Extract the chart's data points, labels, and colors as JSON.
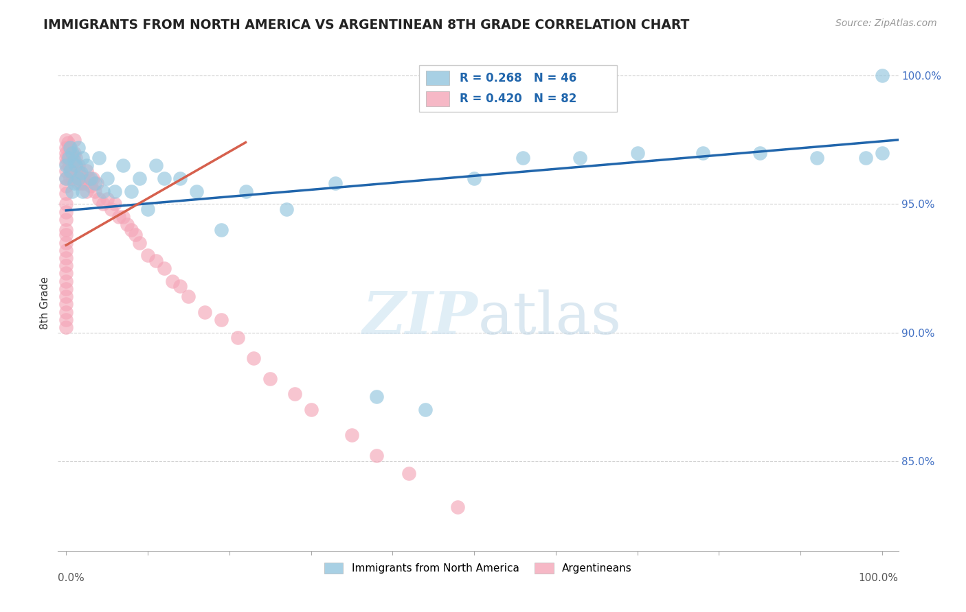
{
  "title": "IMMIGRANTS FROM NORTH AMERICA VS ARGENTINEAN 8TH GRADE CORRELATION CHART",
  "source": "Source: ZipAtlas.com",
  "ylabel": "8th Grade",
  "xlim": [
    -0.01,
    1.02
  ],
  "ylim": [
    0.815,
    1.008
  ],
  "yticks": [
    0.85,
    0.9,
    0.95,
    1.0
  ],
  "ytick_labels": [
    "85.0%",
    "90.0%",
    "95.0%",
    "100.0%"
  ],
  "blue_color": "#92c5de",
  "pink_color": "#f4a6b8",
  "blue_line_color": "#2166ac",
  "pink_line_color": "#d6604d",
  "blue_line_x": [
    0.0,
    1.02
  ],
  "blue_line_y": [
    0.9475,
    0.975
  ],
  "pink_line_x": [
    0.0,
    0.22
  ],
  "pink_line_y": [
    0.934,
    0.974
  ],
  "blue_scatter_x": [
    0.0,
    0.0,
    0.003,
    0.005,
    0.005,
    0.007,
    0.007,
    0.01,
    0.01,
    0.012,
    0.015,
    0.015,
    0.018,
    0.02,
    0.02,
    0.025,
    0.03,
    0.035,
    0.04,
    0.045,
    0.05,
    0.06,
    0.07,
    0.08,
    0.09,
    0.1,
    0.11,
    0.12,
    0.14,
    0.16,
    0.19,
    0.22,
    0.27,
    0.33,
    0.38,
    0.44,
    0.5,
    0.56,
    0.63,
    0.7,
    0.78,
    0.85,
    0.92,
    0.98,
    1.0,
    1.0
  ],
  "blue_scatter_y": [
    0.965,
    0.96,
    0.968,
    0.972,
    0.963,
    0.97,
    0.955,
    0.967,
    0.958,
    0.965,
    0.96,
    0.972,
    0.962,
    0.968,
    0.955,
    0.965,
    0.96,
    0.958,
    0.968,
    0.955,
    0.96,
    0.955,
    0.965,
    0.955,
    0.96,
    0.948,
    0.965,
    0.96,
    0.96,
    0.955,
    0.94,
    0.955,
    0.948,
    0.958,
    0.875,
    0.87,
    0.96,
    0.968,
    0.968,
    0.97,
    0.97,
    0.97,
    0.968,
    0.968,
    0.97,
    1.0
  ],
  "pink_scatter_x": [
    0.0,
    0.0,
    0.0,
    0.0,
    0.0,
    0.0,
    0.0,
    0.0,
    0.0,
    0.0,
    0.0,
    0.0,
    0.0,
    0.0,
    0.0,
    0.0,
    0.0,
    0.0,
    0.0,
    0.0,
    0.0,
    0.0,
    0.0,
    0.0,
    0.0,
    0.0,
    0.002,
    0.002,
    0.003,
    0.004,
    0.005,
    0.005,
    0.006,
    0.007,
    0.008,
    0.009,
    0.01,
    0.01,
    0.01,
    0.012,
    0.013,
    0.015,
    0.015,
    0.016,
    0.018,
    0.02,
    0.022,
    0.025,
    0.025,
    0.028,
    0.03,
    0.033,
    0.035,
    0.038,
    0.04,
    0.045,
    0.05,
    0.055,
    0.06,
    0.065,
    0.07,
    0.075,
    0.08,
    0.085,
    0.09,
    0.1,
    0.11,
    0.12,
    0.13,
    0.14,
    0.15,
    0.17,
    0.19,
    0.21,
    0.23,
    0.25,
    0.28,
    0.3,
    0.35,
    0.38,
    0.42,
    0.48
  ],
  "pink_scatter_y": [
    0.975,
    0.972,
    0.97,
    0.968,
    0.966,
    0.963,
    0.96,
    0.957,
    0.954,
    0.95,
    0.947,
    0.944,
    0.94,
    0.938,
    0.935,
    0.932,
    0.929,
    0.926,
    0.923,
    0.92,
    0.917,
    0.914,
    0.911,
    0.908,
    0.905,
    0.902,
    0.974,
    0.968,
    0.972,
    0.965,
    0.97,
    0.96,
    0.968,
    0.963,
    0.96,
    0.965,
    0.975,
    0.97,
    0.962,
    0.968,
    0.964,
    0.965,
    0.958,
    0.962,
    0.958,
    0.96,
    0.958,
    0.963,
    0.955,
    0.96,
    0.957,
    0.96,
    0.955,
    0.958,
    0.952,
    0.95,
    0.952,
    0.948,
    0.95,
    0.945,
    0.945,
    0.942,
    0.94,
    0.938,
    0.935,
    0.93,
    0.928,
    0.925,
    0.92,
    0.918,
    0.914,
    0.908,
    0.905,
    0.898,
    0.89,
    0.882,
    0.876,
    0.87,
    0.86,
    0.852,
    0.845,
    0.832
  ],
  "background_color": "#ffffff",
  "grid_color": "#cccccc",
  "legend_r1_text": "R = 0.268   N = 46",
  "legend_r2_text": "R = 0.420   N = 82"
}
